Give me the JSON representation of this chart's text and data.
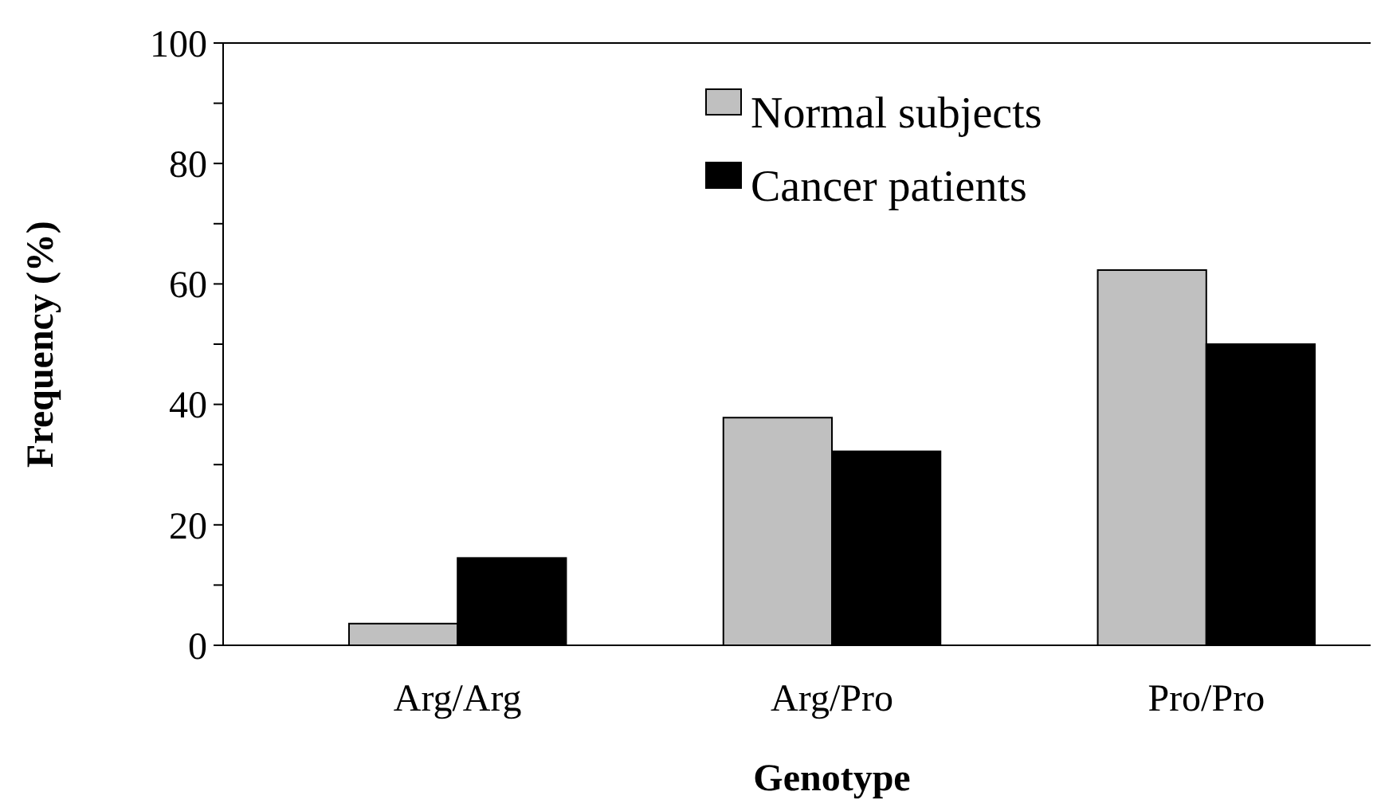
{
  "chart_data": {
    "type": "bar",
    "xlabel": "Genotype",
    "ylabel": "Frequency (%)",
    "categories": [
      "Arg/Arg",
      "Arg/Pro",
      "Pro/Pro"
    ],
    "series": [
      {
        "name": "Normal subjects",
        "color": "#c0c0c0",
        "values": [
          3.6,
          37.8,
          62.3
        ]
      },
      {
        "name": "Cancer patients",
        "color": "#000000",
        "values": [
          14.5,
          32.2,
          50
        ]
      }
    ],
    "ylim": [
      0,
      100
    ],
    "yticks": [
      0,
      {
        "value": 10,
        "label": null
      },
      20,
      {
        "value": 30,
        "label": null
      },
      40,
      {
        "value": 50,
        "label": null
      },
      60,
      {
        "value": 70,
        "label": null
      },
      80,
      {
        "value": 90,
        "label": null
      },
      100
    ],
    "grid": false,
    "legend": "top right"
  }
}
